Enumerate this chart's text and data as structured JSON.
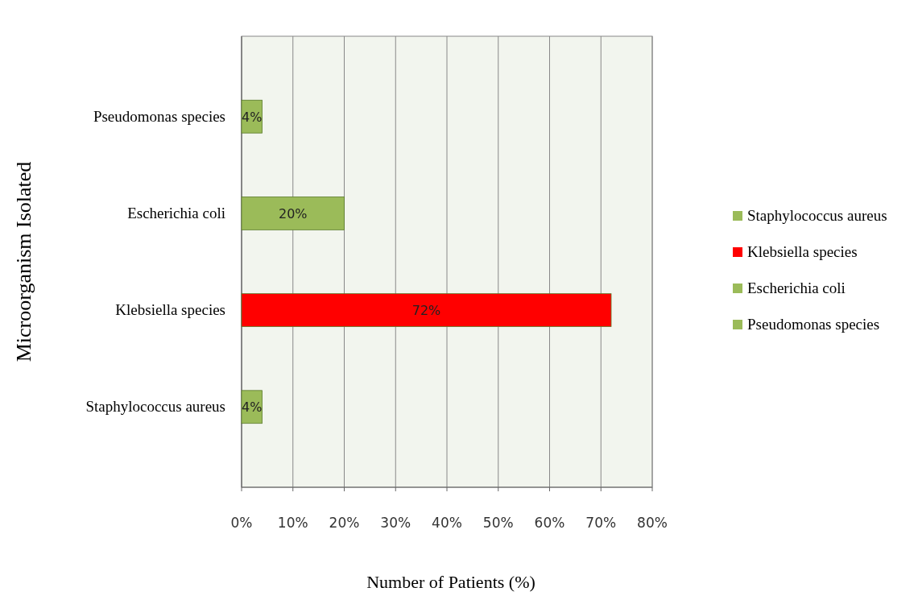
{
  "chart_data": {
    "type": "bar",
    "orientation": "horizontal",
    "xlabel": "Number of Patients (%)",
    "ylabel": "Microorganism Isolated",
    "categories": [
      "Pseudomonas species",
      "Escherichia coli",
      "Klebsiella species",
      "Staphylococcus aureus"
    ],
    "series": [
      {
        "name": "Staphylococcus aureus",
        "color": "#9bbb59",
        "values": [
          null,
          null,
          null,
          4
        ],
        "value_labels": [
          null,
          null,
          null,
          "4%"
        ]
      },
      {
        "name": "Klebsiella species",
        "color": "#ff0000",
        "values": [
          null,
          null,
          72,
          null
        ],
        "value_labels": [
          null,
          null,
          "72%",
          null
        ]
      },
      {
        "name": "Escherichia coli",
        "color": "#9bbb59",
        "values": [
          null,
          20,
          null,
          null
        ],
        "value_labels": [
          null,
          "20%",
          null,
          null
        ]
      },
      {
        "name": "Pseudomonas species",
        "color": "#9bbb59",
        "values": [
          4,
          null,
          null,
          null
        ],
        "value_labels": [
          "4%",
          null,
          null,
          null
        ]
      }
    ],
    "xlim": [
      0,
      80
    ],
    "xticks": [
      {
        "value": 0,
        "label": "0%"
      },
      {
        "value": 10,
        "label": "10%"
      },
      {
        "value": 20,
        "label": "20%"
      },
      {
        "value": 30,
        "label": "30%"
      },
      {
        "value": 40,
        "label": "40%"
      },
      {
        "value": 50,
        "label": "50%"
      },
      {
        "value": 60,
        "label": "60%"
      },
      {
        "value": 70,
        "label": "70%"
      },
      {
        "value": 80,
        "label": "80%"
      }
    ],
    "grid": "x",
    "legend": "right"
  }
}
